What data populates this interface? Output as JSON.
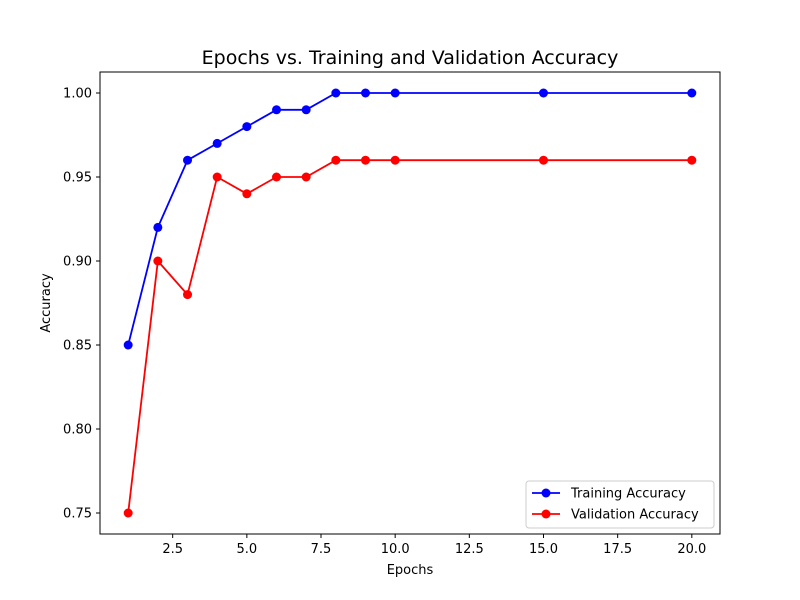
{
  "chart_data": {
    "type": "line",
    "title": "Epochs vs. Training and Validation Accuracy",
    "xlabel": "Epochs",
    "ylabel": "Accuracy",
    "xlim": [
      0.05,
      20.95
    ],
    "ylim": [
      0.7375,
      1.0125
    ],
    "xticks": [
      2.5,
      5.0,
      7.5,
      10.0,
      12.5,
      15.0,
      17.5,
      20.0
    ],
    "xtick_labels": [
      "2.5",
      "5.0",
      "7.5",
      "10.0",
      "12.5",
      "15.0",
      "17.5",
      "20.0"
    ],
    "yticks": [
      0.75,
      0.8,
      0.85,
      0.9,
      0.95,
      1.0
    ],
    "ytick_labels": [
      "0.75",
      "0.80",
      "0.85",
      "0.90",
      "0.95",
      "1.00"
    ],
    "grid": false,
    "legend_position": "lower-right",
    "x": [
      1,
      2,
      3,
      4,
      5,
      6,
      7,
      8,
      9,
      10,
      15,
      20
    ],
    "series": [
      {
        "name": "Training Accuracy",
        "color": "#0000ff",
        "values": [
          0.85,
          0.92,
          0.96,
          0.97,
          0.98,
          0.99,
          0.99,
          1.0,
          1.0,
          1.0,
          1.0,
          1.0
        ]
      },
      {
        "name": "Validation Accuracy",
        "color": "#ff0000",
        "values": [
          0.75,
          0.9,
          0.88,
          0.95,
          0.94,
          0.95,
          0.95,
          0.96,
          0.96,
          0.96,
          0.96,
          0.96
        ]
      }
    ]
  }
}
